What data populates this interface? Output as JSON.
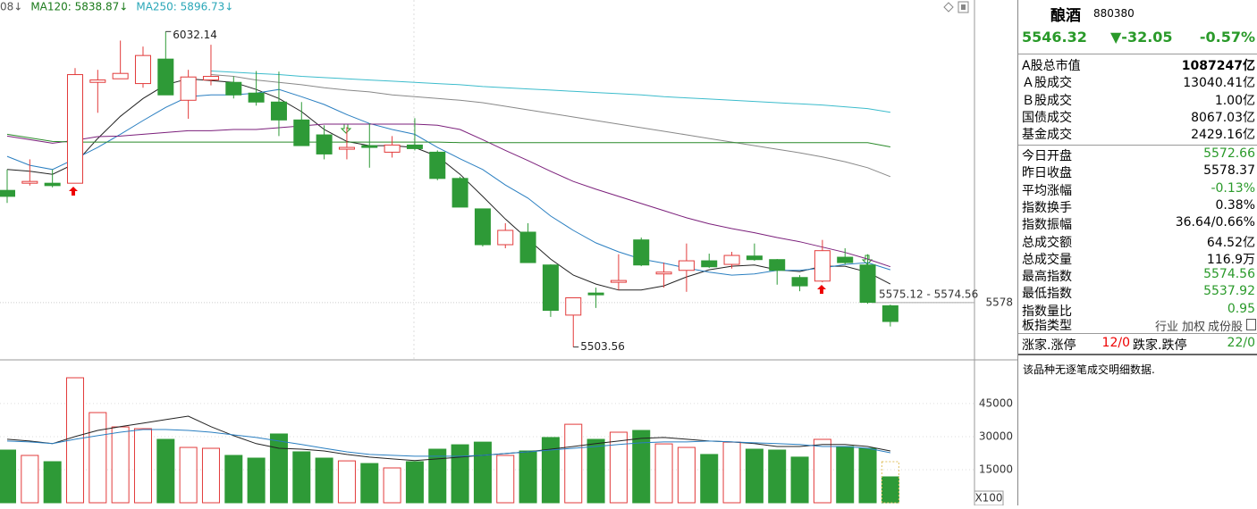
{
  "chart_data": [
    {
      "type": "candlestick",
      "up_color": "#e23b3b",
      "down_color": "#2e9a37",
      "ylim": [
        5482,
        6085
      ],
      "yticks": [
        5578
      ],
      "ohlc": [
        [
          5766,
          5801,
          5745,
          5756
        ],
        [
          5778,
          5818,
          5774,
          5781
        ],
        [
          5778,
          5801,
          5771,
          5774
        ],
        [
          5778,
          5971,
          5778,
          5960
        ],
        [
          5947,
          5968,
          5896,
          5951
        ],
        [
          5953,
          6017,
          5953,
          5962
        ],
        [
          5945,
          6007,
          5938,
          5992
        ],
        [
          5986,
          6032.14,
          5926,
          5926
        ],
        [
          5917,
          5968,
          5886,
          5956
        ],
        [
          5951,
          6010,
          5942,
          5957
        ],
        [
          5947,
          5957,
          5920,
          5926
        ],
        [
          5929,
          5966,
          5908,
          5914
        ],
        [
          5914,
          5965,
          5857,
          5884
        ],
        [
          5884,
          5914,
          5841,
          5841
        ],
        [
          5859,
          5875,
          5818,
          5827
        ],
        [
          5835,
          5872,
          5818,
          5838
        ],
        [
          5841,
          5878,
          5804,
          5838
        ],
        [
          5830,
          5857,
          5821,
          5842
        ],
        [
          5842,
          5887,
          5833,
          5836
        ],
        [
          5830,
          5833,
          5783,
          5786
        ],
        [
          5786,
          5789,
          5738,
          5738
        ],
        [
          5735,
          5735,
          5672,
          5675
        ],
        [
          5675,
          5711,
          5669,
          5699
        ],
        [
          5696,
          5711,
          5645,
          5645
        ],
        [
          5641,
          5642,
          5554,
          5565
        ],
        [
          5557,
          5586,
          5503.56,
          5586
        ],
        [
          5594,
          5603,
          5569,
          5591
        ],
        [
          5612,
          5659,
          5599,
          5615
        ],
        [
          5683,
          5687,
          5639,
          5641
        ],
        [
          5626,
          5645,
          5603,
          5629
        ],
        [
          5632,
          5677,
          5596,
          5648
        ],
        [
          5648,
          5660,
          5636,
          5638
        ],
        [
          5642,
          5663,
          5635,
          5657
        ],
        [
          5656,
          5677,
          5648,
          5650
        ],
        [
          5650,
          5651,
          5608,
          5632
        ],
        [
          5620,
          5624,
          5597,
          5606
        ],
        [
          5614,
          5683,
          5612,
          5665
        ],
        [
          5654,
          5669,
          5642,
          5645
        ],
        [
          5641,
          5659,
          5576,
          5578.37
        ],
        [
          5572.66,
          5574.56,
          5537.92,
          5546.32
        ]
      ],
      "series": [
        {
          "color": "#222222",
          "values": [
            5801,
            5798,
            5793,
            5811,
            5853,
            5890,
            5920,
            5943,
            5953,
            5950,
            5947,
            5935,
            5920,
            5898,
            5868,
            5848,
            5841,
            5841,
            5838,
            5823,
            5793,
            5756,
            5718,
            5684,
            5651,
            5624,
            5609,
            5599,
            5599,
            5606,
            5621,
            5633,
            5639,
            5641,
            5633,
            5630,
            5639,
            5639,
            5629,
            5609
          ]
        },
        {
          "color": "#2a7fc1",
          "values": [
            5823,
            5808,
            5801,
            5819,
            5838,
            5860,
            5883,
            5905,
            5923,
            5926,
            5926,
            5929,
            5935,
            5923,
            5910,
            5893,
            5878,
            5868,
            5860,
            5838,
            5819,
            5801,
            5775,
            5753,
            5723,
            5699,
            5678,
            5663,
            5651,
            5644,
            5636,
            5629,
            5624,
            5626,
            5632,
            5632,
            5636,
            5642,
            5645,
            5633
          ]
        },
        {
          "color": "#7b1f7b",
          "values": [
            5857,
            5851,
            5845,
            5850,
            5856,
            5857,
            5860,
            5863,
            5866,
            5866,
            5868,
            5868,
            5871,
            5874,
            5877,
            5877,
            5877,
            5877,
            5877,
            5875,
            5868,
            5851,
            5833,
            5816,
            5798,
            5781,
            5768,
            5756,
            5744,
            5732,
            5720,
            5710,
            5702,
            5695,
            5687,
            5680,
            5671,
            5662,
            5651,
            5638
          ]
        },
        {
          "name": "08↓",
          "color": "#888888",
          "label_color": "#555555",
          "values": [
            null,
            null,
            null,
            null,
            null,
            null,
            null,
            null,
            null,
            5960,
            5957,
            5951,
            5947,
            5943,
            5938,
            5934,
            5931,
            5926,
            5923,
            5920,
            5917,
            5913,
            5907,
            5901,
            5895,
            5889,
            5883,
            5877,
            5871,
            5865,
            5859,
            5853,
            5847,
            5841,
            5835,
            5829,
            5822,
            5814,
            5804,
            5789
          ]
        },
        {
          "name": "MA120: 5838.87↓",
          "color": "#2a8a2a",
          "label_color": "#1a7a1a",
          "values": [
            5860,
            5854,
            5848,
            5847,
            5847,
            5847,
            5847,
            5847,
            5847,
            5847,
            5847,
            5847,
            5847,
            5847,
            5847,
            5847,
            5847,
            5847,
            5847,
            5847,
            5846,
            5846,
            5846,
            5846,
            5846,
            5846,
            5846,
            5846,
            5846,
            5846,
            5846,
            5846,
            5846,
            5846,
            5846,
            5846,
            5846,
            5846,
            5846,
            5838.87
          ]
        },
        {
          "name": "MA250: 5896.73↓",
          "color": "#3cbccc",
          "label_color": "#2aa7b8",
          "values": [
            null,
            null,
            null,
            null,
            null,
            null,
            null,
            null,
            null,
            5966,
            5964,
            5962,
            5960,
            5957,
            5955,
            5953,
            5951,
            5949,
            5947,
            5945,
            5943,
            5940,
            5938,
            5936,
            5934,
            5932,
            5930,
            5928,
            5926,
            5923,
            5921,
            5919,
            5917,
            5915,
            5913,
            5911,
            5909,
            5906,
            5903,
            5896.73
          ]
        }
      ],
      "annotations": [
        {
          "index": 7,
          "value": 6032.14
        },
        {
          "index": 25,
          "value": 5503.56
        }
      ],
      "cursor_label": "5575.12 - 5574.56"
    },
    {
      "type": "bar",
      "unit": "X100",
      "ylim": [
        0,
        64000
      ],
      "yticks": [
        15000,
        30000,
        45000
      ],
      "values": [
        23900,
        21470,
        18630,
        56700,
        40900,
        34400,
        33600,
        28760,
        25100,
        24700,
        21470,
        20250,
        31200,
        23100,
        20250,
        19000,
        17800,
        15800,
        18630,
        24300,
        26300,
        27500,
        21470,
        23500,
        29600,
        35600,
        28760,
        32000,
        32800,
        26700,
        25100,
        21900,
        27500,
        24300,
        23900,
        20700,
        28760,
        25500,
        24700,
        11750
      ],
      "forecast": 18630,
      "forecast_color": "#e0c060",
      "series": [
        {
          "color": "#222222",
          "values": [
            28800,
            28000,
            26800,
            30000,
            32800,
            34500,
            36100,
            37700,
            39300,
            34500,
            30400,
            26800,
            24700,
            24300,
            23500,
            21900,
            20700,
            19900,
            19100,
            19900,
            20700,
            21500,
            22300,
            23100,
            24300,
            25500,
            26800,
            28000,
            29200,
            29600,
            28800,
            28000,
            27600,
            26800,
            25500,
            25500,
            26400,
            26400,
            25500,
            23500
          ]
        },
        {
          "color": "#2a7fc1",
          "values": [
            28000,
            27600,
            26800,
            28800,
            30400,
            32000,
            33200,
            33200,
            32800,
            32000,
            30800,
            29600,
            28000,
            26400,
            24700,
            23100,
            21900,
            21500,
            21100,
            21100,
            21100,
            21500,
            22300,
            23100,
            23900,
            24700,
            25500,
            26400,
            27200,
            27600,
            27600,
            28000,
            27600,
            27200,
            26800,
            26400,
            25500,
            25500,
            24700,
            22700
          ]
        }
      ]
    }
  ],
  "info_panel": {
    "name": "酿酒",
    "code": "880380",
    "price": "5546.32",
    "change": "▼-32.05",
    "change_pct": "-0.57%",
    "market_rows": [
      {
        "label": "A股总市值",
        "value": "1087247亿",
        "color": "#000000",
        "bold": true
      },
      {
        "label": "Ａ股成交",
        "value": "13040.41亿",
        "color": "#000000"
      },
      {
        "label": "Ｂ股成交",
        "value": "1.00亿",
        "color": "#000000"
      },
      {
        "label": "国债成交",
        "value": "8067.03亿",
        "color": "#000000"
      },
      {
        "label": "基金成交",
        "value": "2429.16亿",
        "color": "#000000"
      }
    ],
    "stat_rows": [
      {
        "label": "今日开盘",
        "value": "5572.66",
        "color": "#2a9a2a"
      },
      {
        "label": "昨日收盘",
        "value": "5578.37",
        "color": "#000000"
      },
      {
        "label": "平均涨幅",
        "value": "-0.13%",
        "color": "#2a9a2a"
      },
      {
        "label": "指数换手",
        "value": "0.38%",
        "color": "#000000"
      },
      {
        "label": "指数振幅",
        "value": "36.64/0.66%",
        "color": "#000000"
      },
      {
        "label": "总成交额",
        "value": "64.52亿",
        "color": "#000000"
      },
      {
        "label": "总成交量",
        "value": "116.9万",
        "color": "#000000"
      },
      {
        "label": "最高指数",
        "value": "5574.56",
        "color": "#2a9a2a"
      },
      {
        "label": "最低指数",
        "value": "5537.92",
        "color": "#2a9a2a"
      },
      {
        "label": "指数量比",
        "value": "0.95",
        "color": "#2a9a2a"
      }
    ],
    "sector_type": {
      "label": "板指类型",
      "options": [
        "行业",
        "加权",
        "成份股"
      ]
    },
    "breadth": [
      "涨家.涨停",
      "12/0",
      "跌家.跌停",
      "22/0"
    ],
    "note": "该品种无逐笔成交明细数据."
  }
}
